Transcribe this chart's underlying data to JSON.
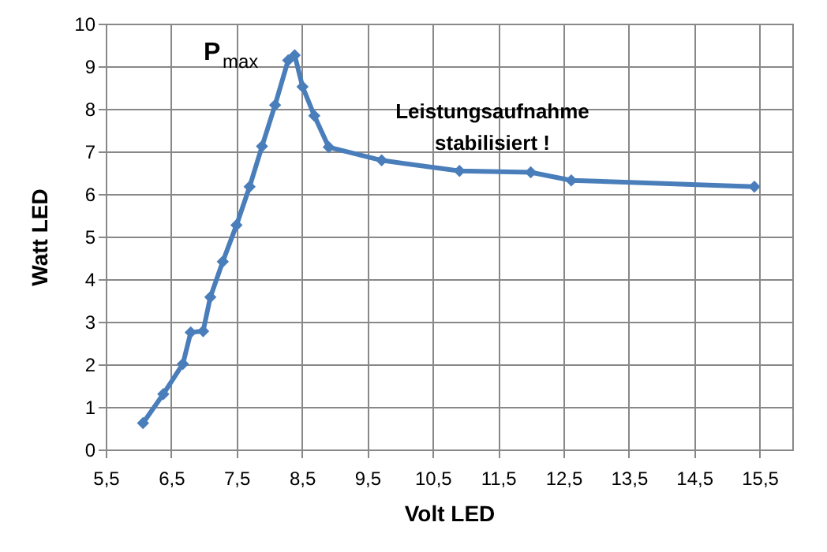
{
  "chart_data": {
    "type": "line",
    "xlabel": "Volt LED",
    "ylabel": "Watt  LED",
    "x": [
      6.07,
      6.38,
      6.68,
      6.8,
      6.99,
      7.1,
      7.29,
      7.5,
      7.7,
      7.89,
      8.09,
      8.29,
      8.39,
      8.51,
      8.69,
      8.91,
      9.72,
      10.91,
      12.0,
      12.62,
      15.42
    ],
    "series": [
      {
        "color": "#4a7ebb",
        "values": [
          0.62,
          1.3,
          2.01,
          2.75,
          2.78,
          3.58,
          4.41,
          5.27,
          6.17,
          7.12,
          8.09,
          9.14,
          9.26,
          8.52,
          7.84,
          7.1,
          6.79,
          6.54,
          6.51,
          6.32,
          6.17
        ]
      }
    ],
    "xlim": [
      5.5,
      16.0
    ],
    "xticks": [
      {
        "value": 5.5,
        "label": "5,5"
      },
      {
        "value": 6.5,
        "label": "6,5"
      },
      {
        "value": 7.5,
        "label": "7,5"
      },
      {
        "value": 8.5,
        "label": "8,5"
      },
      {
        "value": 9.5,
        "label": "9,5"
      },
      {
        "value": 10.5,
        "label": "10,5"
      },
      {
        "value": 11.5,
        "label": "11,5"
      },
      {
        "value": 12.5,
        "label": "12,5"
      },
      {
        "value": 13.5,
        "label": "13,5"
      },
      {
        "value": 14.5,
        "label": "14,5"
      },
      {
        "value": 15.5,
        "label": "15,5"
      }
    ],
    "ylim": [
      0,
      10
    ],
    "yticks": [
      0,
      1,
      2,
      3,
      4,
      5,
      6,
      7,
      8,
      9,
      10
    ],
    "grid": true,
    "marker": "diamond",
    "line_style": "solid",
    "annotations": [
      "P$_{max}$",
      "Leistungsaufnahme\nstabilisiert !"
    ]
  }
}
